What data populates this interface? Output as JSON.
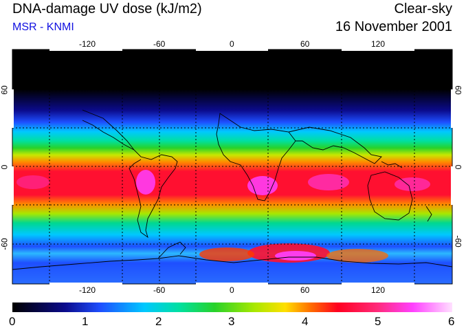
{
  "header": {
    "title": "DNA-damage UV dose (kJ/m2)",
    "source": "MSR - KNMI",
    "condition": "Clear-sky",
    "date": "16 November 2001"
  },
  "map": {
    "lon_ticks": [
      "-120",
      "-60",
      "0",
      "60",
      "120"
    ],
    "lat_ticks_left": [
      "60",
      "0",
      "-60"
    ],
    "lat_ticks_right": [
      "60",
      "0",
      "-60"
    ]
  },
  "colorbar": {
    "labels": [
      "0",
      "1",
      "2",
      "3",
      "4",
      "5",
      "6"
    ],
    "colors": [
      "#000000",
      "#0b0b8c",
      "#1e4fff",
      "#00c8ff",
      "#00e0a0",
      "#28d22a",
      "#a8e800",
      "#ffe000",
      "#ff6a00",
      "#ff0020",
      "#ff2a7a",
      "#ff40ff",
      "#ffe0ff"
    ]
  }
}
